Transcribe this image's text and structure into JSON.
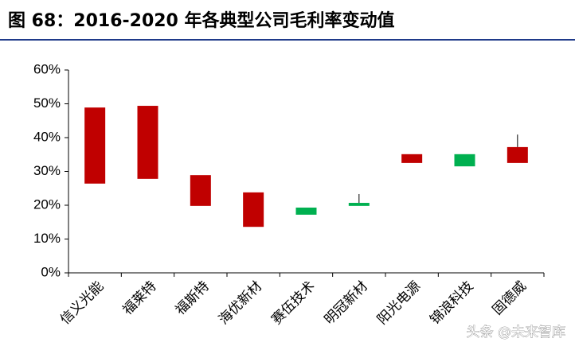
{
  "chart_data": {
    "type": "floating_box",
    "title": "图 68：2016-2020 年各典型公司毛利率变动值",
    "categories": [
      "信义光能",
      "福莱特",
      "福斯特",
      "海优新材",
      "赛伍技术",
      "明冠新材",
      "阳光电源",
      "锦浪科技",
      "固德威"
    ],
    "box_low": [
      26.4,
      27.8,
      19.8,
      13.6,
      17.2,
      19.8,
      32.5,
      31.5,
      32.5
    ],
    "box_high": [
      48.9,
      49.4,
      28.9,
      23.8,
      19.3,
      20.7,
      35.1,
      35.1,
      37.2
    ],
    "whisker_high": [
      null,
      null,
      null,
      null,
      null,
      23.3,
      null,
      null,
      40.9
    ],
    "colors": [
      "#c00000",
      "#c00000",
      "#c00000",
      "#c00000",
      "#00b050",
      "#00b050",
      "#c00000",
      "#00b050",
      "#c00000"
    ],
    "ylim": [
      0,
      60
    ],
    "yticks": [
      {
        "value": 0,
        "label": "0%"
      },
      {
        "value": 10,
        "label": "10%"
      },
      {
        "value": 20,
        "label": "20%"
      },
      {
        "value": 30,
        "label": "30%"
      },
      {
        "value": 40,
        "label": "40%"
      },
      {
        "value": 50,
        "label": "50%"
      },
      {
        "value": 60,
        "label": "60%"
      }
    ],
    "watermark": "头条 @未来智库"
  }
}
